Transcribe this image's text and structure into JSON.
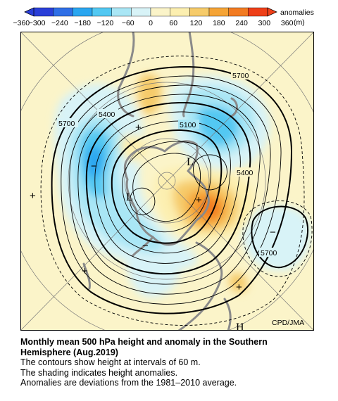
{
  "colorbar": {
    "tick_labels": [
      "−360",
      "−300",
      "−240",
      "−180",
      "−120",
      "−60",
      "0",
      "60",
      "120",
      "180",
      "240",
      "300",
      "360"
    ],
    "unit_line1": "anomalies",
    "unit_line2": "(m)",
    "colors": [
      "#2a3fd8",
      "#2f6fe6",
      "#2aa6f0",
      "#52c8f2",
      "#a9e6f5",
      "#d8f3f7",
      "#fbf4c9",
      "#fcefb0",
      "#f6cb6a",
      "#f5a436",
      "#f27b22",
      "#ee3f18"
    ]
  },
  "map": {
    "contour_labels": [
      "5700",
      "5400",
      "5100",
      "5700",
      "5400",
      "5700"
    ],
    "low_markers": [
      "L",
      "L"
    ],
    "high_markers": [
      "H"
    ],
    "credit": "CPD/JMA",
    "anomaly_signs": [
      "+",
      "+",
      "+",
      "+",
      "+",
      "−",
      "−",
      "−"
    ]
  },
  "caption": {
    "title_line1": "Monthly mean 500 hPa height and anomaly in the Southern",
    "title_line2": "Hemisphere (Aug.2019)",
    "line1": "The contours show height at intervals of 60 m.",
    "line2": "The shading indicates height anomalies.",
    "line3": "Anomalies are deviations from the 1981–2010 average."
  }
}
